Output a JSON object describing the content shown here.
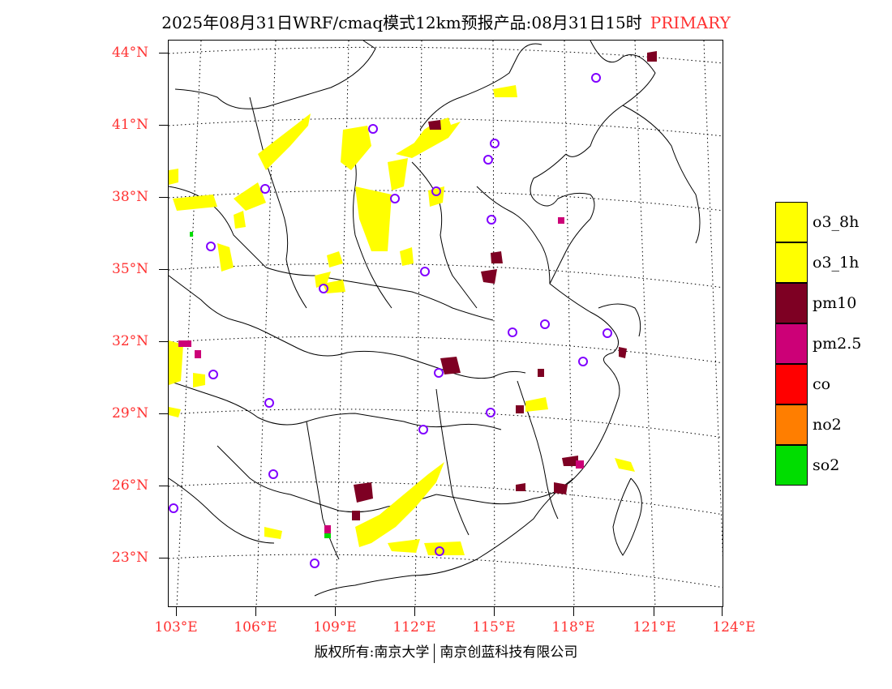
{
  "title": {
    "text": "2025年08月31日WRF/cmaq模式12km预报产品:08月31日15时",
    "tag": "PRIMARY",
    "tag_color": "#ff3030"
  },
  "axes": {
    "lat_labels": [
      "44°N",
      "41°N",
      "38°N",
      "35°N",
      "32°N",
      "29°N",
      "26°N",
      "23°N"
    ],
    "lon_labels": [
      "103°E",
      "106°E",
      "109°E",
      "112°E",
      "115°E",
      "118°E",
      "121°E",
      "124°E"
    ],
    "label_color": "#ff3030"
  },
  "legend": [
    {
      "label": "o3_8h",
      "color": "#ffff00"
    },
    {
      "label": "o3_1h",
      "color": "#ffff00"
    },
    {
      "label": "pm10",
      "color": "#7e0023"
    },
    {
      "label": "pm2.5",
      "color": "#cc0077"
    },
    {
      "label": "co",
      "color": "#ff0000"
    },
    {
      "label": "no2",
      "color": "#ff7e00"
    },
    {
      "label": "so2",
      "color": "#00dd00"
    }
  ],
  "footer": {
    "left": "版权所有:南京大学",
    "right": "南京创蓝科技有限公司"
  }
}
